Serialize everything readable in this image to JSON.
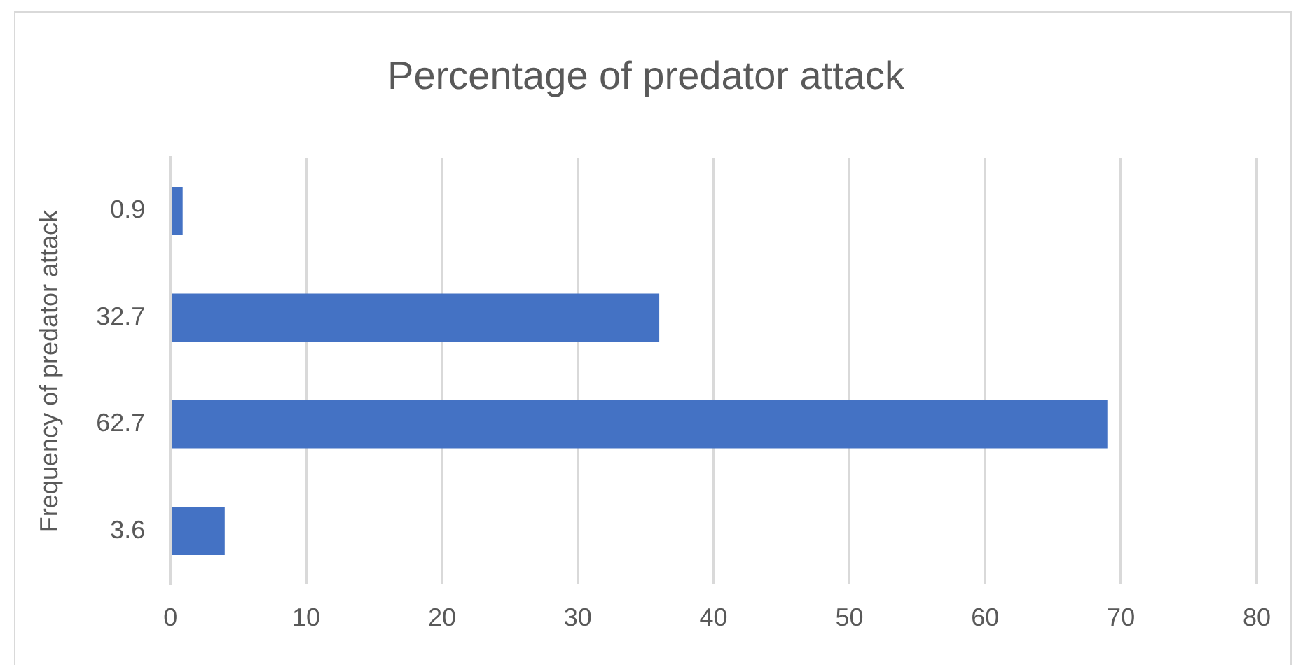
{
  "chart_data": {
    "type": "bar",
    "orientation": "horizontal",
    "title": "Percentage of predator attack",
    "ylabel": "Frequency of predator attack",
    "categories": [
      "0.9",
      "32.7",
      "62.7",
      "3.6"
    ],
    "values": [
      0.9,
      36,
      69,
      4
    ],
    "color": "#4472c4",
    "xlim": [
      0,
      80
    ],
    "xticks": [
      0,
      10,
      20,
      30,
      40,
      50,
      60,
      70,
      80
    ],
    "grid": "x",
    "legend": false
  }
}
